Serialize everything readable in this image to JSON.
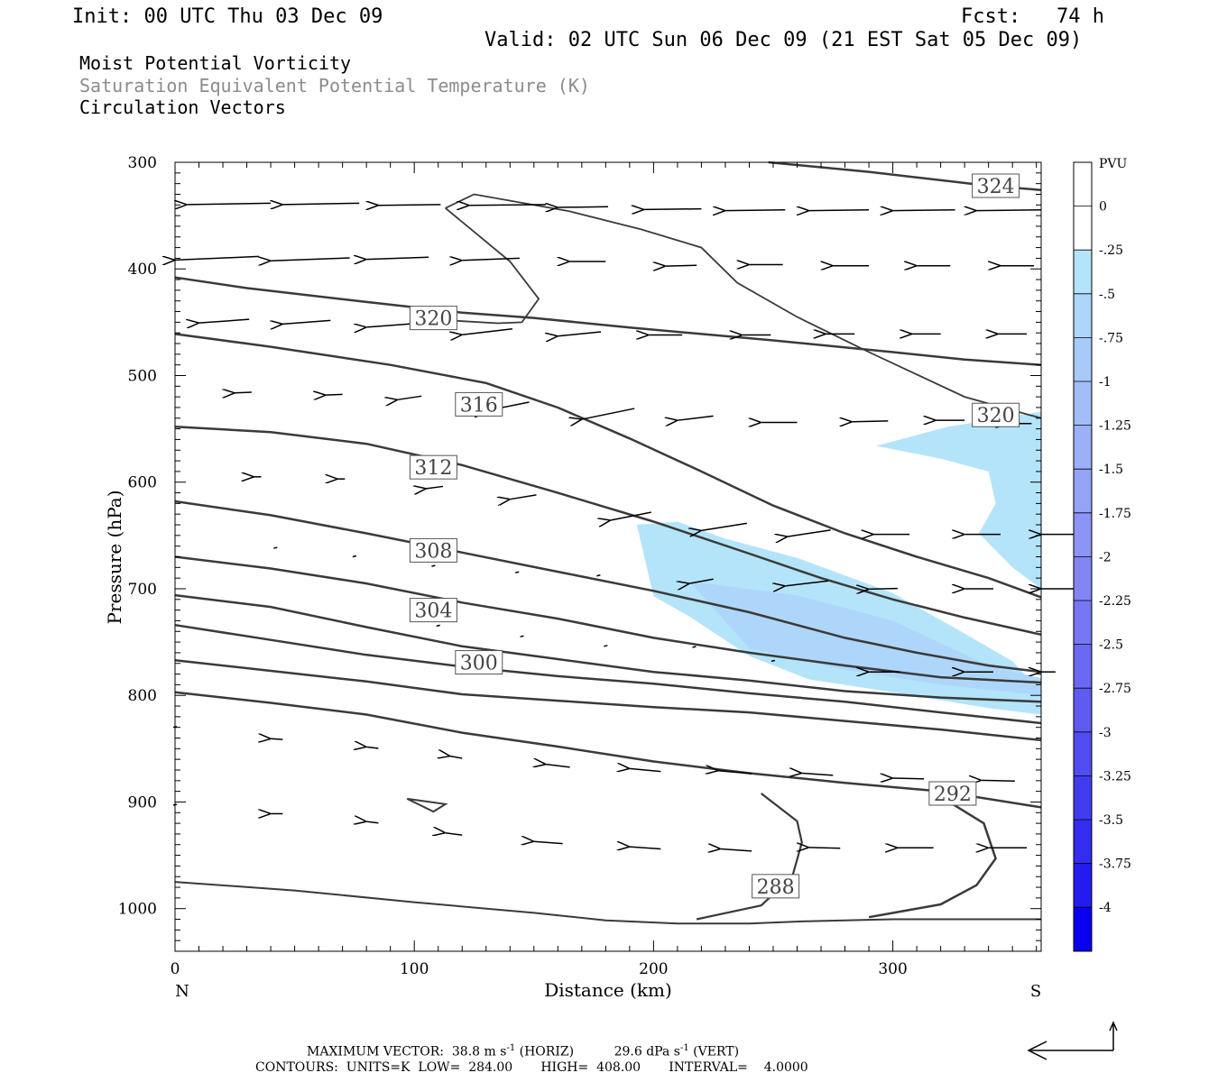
{
  "header": {
    "init": "Init: 00 UTC Thu 03 Dec 09",
    "fcst": "Fcst:   74 h",
    "valid": "Valid: 02 UTC Sun 06 Dec 09 (21 EST Sat 05 Dec 09)",
    "field1": "Moist Potential Vorticity",
    "field2": "Saturation Equivalent Potential Temperature (K)",
    "field3": "Circulation Vectors"
  },
  "footer": {
    "max_vector_label": "MAXIMUM VECTOR:",
    "max_horiz": "38.8 m s",
    "horiz_unit": "(HORIZ)",
    "max_vert": "29.6 dPa s",
    "vert_unit": "(VERT)",
    "exponent": "-1",
    "contours": "CONTOURS:  UNITS=K  LOW=  284.00       HIGH=  408.00       INTERVAL=    4.0000"
  },
  "chart_data": {
    "type": "cross-section",
    "xlabel": "Distance (km)",
    "ylabel": "Pressure (hPa)",
    "left_end_label": "N",
    "right_end_label": "S",
    "xlim": [
      0,
      362
    ],
    "ylim": [
      1040,
      300
    ],
    "x_ticks": [
      0,
      100,
      200,
      300
    ],
    "y_ticks": [
      300,
      400,
      500,
      600,
      700,
      800,
      900,
      1000
    ],
    "colorbar": {
      "unit": "PVU",
      "labels": [
        "0",
        "-.25",
        "-.5",
        "-.75",
        "-1",
        "-1.25",
        "-1.5",
        "-1.75",
        "-2",
        "-2.25",
        "-2.5",
        "-2.75",
        "-3",
        "-3.25",
        "-3.5",
        "-3.75",
        "-4"
      ],
      "colors": [
        "#ffffff",
        "#ffffff",
        "#b4e4fa",
        "#aed6fa",
        "#a8caf9",
        "#a2bdf8",
        "#9cb0f7",
        "#95a3f6",
        "#8c94f5",
        "#8286f4",
        "#7677f3",
        "#6a69f2",
        "#5e5bf1",
        "#504cf0",
        "#423cef",
        "#342cee",
        "#241cee",
        "#0a00f0"
      ]
    },
    "contour_labels": [
      {
        "text": "324",
        "x": 343,
        "p": 322
      },
      {
        "text": "320",
        "x": 108,
        "p": 446
      },
      {
        "text": "320",
        "x": 343,
        "p": 537
      },
      {
        "text": "316",
        "x": 127,
        "p": 527
      },
      {
        "text": "312",
        "x": 108,
        "p": 586
      },
      {
        "text": "308",
        "x": 108,
        "p": 664
      },
      {
        "text": "304",
        "x": 108,
        "p": 720
      },
      {
        "text": "300",
        "x": 127,
        "p": 769
      },
      {
        "text": "292",
        "x": 325,
        "p": 892
      },
      {
        "text": "288",
        "x": 251,
        "p": 979
      }
    ],
    "theta_contours": [
      [
        [
          0,
          408
        ],
        [
          30,
          418
        ],
        [
          80,
          431
        ],
        [
          120,
          441
        ],
        [
          150,
          446
        ],
        [
          190,
          455
        ],
        [
          250,
          467
        ],
        [
          300,
          478
        ],
        [
          330,
          485
        ],
        [
          362,
          490
        ]
      ],
      [
        [
          0,
          461
        ],
        [
          40,
          473
        ],
        [
          90,
          490
        ],
        [
          130,
          507
        ],
        [
          160,
          530
        ],
        [
          190,
          559
        ],
        [
          220,
          590
        ],
        [
          250,
          622
        ],
        [
          280,
          648
        ],
        [
          310,
          670
        ],
        [
          340,
          690
        ],
        [
          362,
          708
        ]
      ],
      [
        [
          0,
          548
        ],
        [
          40,
          553
        ],
        [
          80,
          564
        ],
        [
          120,
          584
        ],
        [
          160,
          610
        ],
        [
          200,
          637
        ],
        [
          240,
          667
        ],
        [
          270,
          690
        ],
        [
          300,
          710
        ],
        [
          330,
          727
        ],
        [
          362,
          743
        ]
      ],
      [
        [
          0,
          618
        ],
        [
          40,
          631
        ],
        [
          80,
          648
        ],
        [
          120,
          666
        ],
        [
          160,
          684
        ],
        [
          200,
          702
        ],
        [
          240,
          722
        ],
        [
          280,
          746
        ],
        [
          310,
          760
        ],
        [
          340,
          772
        ],
        [
          362,
          778
        ]
      ],
      [
        [
          0,
          670
        ],
        [
          40,
          681
        ],
        [
          80,
          695
        ],
        [
          120,
          713
        ],
        [
          160,
          728
        ],
        [
          200,
          746
        ],
        [
          240,
          760
        ],
        [
          280,
          772
        ],
        [
          320,
          783
        ],
        [
          362,
          788
        ]
      ],
      [
        [
          0,
          706
        ],
        [
          40,
          717
        ],
        [
          80,
          736
        ],
        [
          120,
          754
        ],
        [
          160,
          766
        ],
        [
          200,
          778
        ],
        [
          240,
          786
        ],
        [
          280,
          796
        ],
        [
          320,
          802
        ],
        [
          362,
          806
        ]
      ],
      [
        [
          0,
          734
        ],
        [
          40,
          748
        ],
        [
          80,
          762
        ],
        [
          120,
          773
        ],
        [
          160,
          782
        ],
        [
          200,
          789
        ],
        [
          240,
          798
        ],
        [
          280,
          806
        ],
        [
          320,
          816
        ],
        [
          362,
          826
        ]
      ],
      [
        [
          0,
          767
        ],
        [
          40,
          777
        ],
        [
          80,
          787
        ],
        [
          120,
          799
        ],
        [
          160,
          805
        ],
        [
          200,
          811
        ],
        [
          240,
          816
        ],
        [
          280,
          824
        ],
        [
          320,
          832
        ],
        [
          362,
          842
        ]
      ],
      [
        [
          0,
          797
        ],
        [
          40,
          807
        ],
        [
          80,
          818
        ],
        [
          120,
          835
        ],
        [
          160,
          848
        ],
        [
          200,
          862
        ],
        [
          240,
          873
        ],
        [
          280,
          882
        ],
        [
          320,
          890
        ],
        [
          362,
          905
        ]
      ]
    ],
    "contour_288": [
      [
        0,
        975
      ],
      [
        50,
        983
      ],
      [
        100,
        994
      ],
      [
        150,
        1004
      ],
      [
        180,
        1011
      ],
      [
        210,
        1014
      ],
      [
        240,
        1014
      ],
      [
        262,
        1012
      ],
      [
        300,
        1010
      ],
      [
        330,
        1010
      ],
      [
        362,
        1010
      ]
    ],
    "contour_288_inner": [
      [
        218,
        1010
      ],
      [
        245,
        997
      ],
      [
        258,
        970
      ],
      [
        262,
        938
      ],
      [
        260,
        918
      ],
      [
        245,
        892
      ]
    ],
    "contour_292_right": [
      [
        290,
        1008
      ],
      [
        320,
        996
      ],
      [
        335,
        978
      ],
      [
        343,
        953
      ],
      [
        338,
        920
      ],
      [
        325,
        902
      ]
    ],
    "contour_320_upper": [
      [
        113,
        343
      ],
      [
        125,
        330
      ],
      [
        165,
        346
      ],
      [
        195,
        363
      ],
      [
        220,
        380
      ],
      [
        235,
        413
      ],
      [
        260,
        445
      ],
      [
        290,
        478
      ],
      [
        330,
        520
      ],
      [
        362,
        540
      ]
    ],
    "contour_324_top": [
      [
        248,
        300
      ],
      [
        290,
        309
      ],
      [
        340,
        322
      ],
      [
        362,
        326
      ]
    ],
    "mpv_region_1": [
      [
        193,
        640
      ],
      [
        210,
        637
      ],
      [
        230,
        653
      ],
      [
        260,
        671
      ],
      [
        300,
        704
      ],
      [
        330,
        742
      ],
      [
        350,
        768
      ],
      [
        362,
        797
      ],
      [
        362,
        818
      ],
      [
        340,
        812
      ],
      [
        300,
        797
      ],
      [
        265,
        785
      ],
      [
        240,
        763
      ],
      [
        215,
        726
      ],
      [
        200,
        707
      ]
    ],
    "mpv_region_1_dark": [
      [
        215,
        693
      ],
      [
        260,
        706
      ],
      [
        300,
        730
      ],
      [
        340,
        772
      ],
      [
        362,
        784
      ],
      [
        362,
        800
      ],
      [
        320,
        790
      ],
      [
        280,
        776
      ],
      [
        240,
        756
      ]
    ],
    "mpv_region_2": [
      [
        293,
        566
      ],
      [
        323,
        548
      ],
      [
        362,
        534
      ],
      [
        362,
        700
      ],
      [
        350,
        680
      ],
      [
        336,
        648
      ],
      [
        343,
        620
      ],
      [
        340,
        590
      ],
      [
        320,
        578
      ]
    ],
    "vectors": [
      [
        5,
        339,
        35,
        -2
      ],
      [
        45,
        339,
        32,
        -2
      ],
      [
        85,
        340,
        26,
        -1
      ],
      [
        123,
        340,
        32,
        -1
      ],
      [
        160,
        342,
        21,
        -1
      ],
      [
        196,
        344,
        24,
        -1
      ],
      [
        230,
        345,
        25,
        -1
      ],
      [
        265,
        345,
        25,
        -1
      ],
      [
        300,
        345,
        26,
        -1
      ],
      [
        335,
        345,
        27,
        -1
      ],
      [
        0,
        390,
        35,
        -5
      ],
      [
        40,
        391,
        33,
        -4
      ],
      [
        80,
        390,
        26,
        -3
      ],
      [
        120,
        391,
        24,
        -3
      ],
      [
        165,
        393,
        15,
        0
      ],
      [
        205,
        397,
        13,
        -1
      ],
      [
        240,
        396,
        14,
        0
      ],
      [
        275,
        397,
        15,
        0
      ],
      [
        310,
        397,
        14,
        0
      ],
      [
        345,
        397,
        14,
        0
      ],
      [
        10,
        449,
        21,
        -5
      ],
      [
        45,
        450,
        20,
        -5
      ],
      [
        80,
        453,
        20,
        -5
      ],
      [
        120,
        459,
        21,
        -8
      ],
      [
        160,
        461,
        18,
        -6
      ],
      [
        198,
        462,
        14,
        0
      ],
      [
        237,
        462,
        12,
        0
      ],
      [
        272,
        461,
        12,
        0
      ],
      [
        308,
        461,
        12,
        0
      ],
      [
        344,
        461,
        12,
        0
      ],
      [
        25,
        516,
        7,
        -1
      ],
      [
        63,
        518,
        7,
        -1
      ],
      [
        93,
        521,
        10,
        -5
      ],
      [
        130,
        529,
        18,
        -12
      ],
      [
        170,
        536,
        22,
        -15
      ],
      [
        210,
        540,
        15,
        -6
      ],
      [
        245,
        544,
        15,
        0
      ],
      [
        283,
        543,
        15,
        -1
      ],
      [
        318,
        542,
        12,
        0
      ],
      [
        348,
        545,
        10,
        0
      ],
      [
        33,
        595,
        3,
        0
      ],
      [
        68,
        597,
        3,
        0
      ],
      [
        105,
        605,
        7,
        -3
      ],
      [
        140,
        614,
        11,
        -6
      ],
      [
        182,
        632,
        17,
        -11
      ],
      [
        220,
        642,
        19,
        -10
      ],
      [
        256,
        648,
        18,
        -9
      ],
      [
        292,
        649,
        15,
        0
      ],
      [
        330,
        649,
        15,
        0
      ],
      [
        362,
        649,
        15,
        0
      ],
      [
        42,
        662,
        0,
        0
      ],
      [
        75,
        670,
        0,
        0
      ],
      [
        108,
        679,
        0,
        0
      ],
      [
        143,
        685,
        0,
        0
      ],
      [
        177,
        688,
        0,
        0
      ],
      [
        215,
        693,
        10,
        -6
      ],
      [
        255,
        695,
        18,
        -7
      ],
      [
        290,
        700,
        12,
        -1
      ],
      [
        330,
        700,
        12,
        0
      ],
      [
        362,
        700,
        14,
        0
      ],
      [
        110,
        735,
        0,
        0
      ],
      [
        145,
        745,
        0,
        0
      ],
      [
        180,
        754,
        0,
        0
      ],
      [
        217,
        755,
        0,
        0
      ],
      [
        250,
        768,
        0,
        0
      ],
      [
        290,
        778,
        13,
        0
      ],
      [
        330,
        778,
        12,
        0
      ],
      [
        362,
        778,
        6,
        0
      ],
      [
        0,
        830,
        0,
        0
      ],
      [
        40,
        841,
        5,
        1
      ],
      [
        80,
        849,
        5,
        2
      ],
      [
        115,
        858,
        5,
        3
      ],
      [
        155,
        866,
        10,
        4
      ],
      [
        190,
        870,
        13,
        4
      ],
      [
        227,
        872,
        14,
        4
      ],
      [
        262,
        874,
        13,
        3
      ],
      [
        300,
        878,
        13,
        1
      ],
      [
        337,
        880,
        14,
        1
      ],
      [
        0,
        903,
        0,
        0
      ],
      [
        40,
        911,
        5,
        0
      ],
      [
        80,
        919,
        5,
        2
      ],
      [
        113,
        930,
        7,
        3
      ],
      [
        150,
        938,
        12,
        3
      ],
      [
        190,
        943,
        13,
        3
      ],
      [
        228,
        945,
        13,
        3
      ],
      [
        265,
        943,
        13,
        1
      ],
      [
        302,
        943,
        15,
        0
      ],
      [
        340,
        943,
        16,
        0
      ]
    ],
    "small_polygon": [
      [
        97,
        897
      ],
      [
        113,
        902
      ],
      [
        108,
        909
      ],
      [
        97,
        897
      ]
    ]
  }
}
